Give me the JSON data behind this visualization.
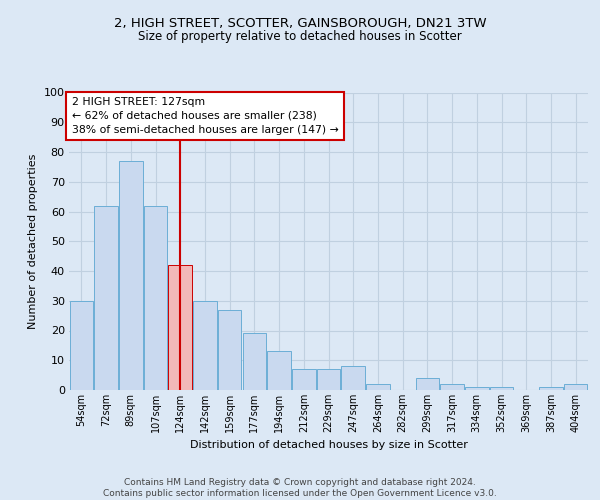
{
  "title1": "2, HIGH STREET, SCOTTER, GAINSBOROUGH, DN21 3TW",
  "title2": "Size of property relative to detached houses in Scotter",
  "xlabel": "Distribution of detached houses by size in Scotter",
  "ylabel": "Number of detached properties",
  "categories": [
    "54sqm",
    "72sqm",
    "89sqm",
    "107sqm",
    "124sqm",
    "142sqm",
    "159sqm",
    "177sqm",
    "194sqm",
    "212sqm",
    "229sqm",
    "247sqm",
    "264sqm",
    "282sqm",
    "299sqm",
    "317sqm",
    "334sqm",
    "352sqm",
    "369sqm",
    "387sqm",
    "404sqm"
  ],
  "values": [
    30,
    62,
    77,
    62,
    42,
    30,
    27,
    19,
    13,
    7,
    7,
    8,
    2,
    0,
    4,
    2,
    1,
    1,
    0,
    1,
    2
  ],
  "bar_color": "#c9d9ef",
  "bar_edge_color": "#6baed6",
  "highlight_bar_index": 4,
  "highlight_bar_color": "#f2b8b8",
  "highlight_bar_edge_color": "#cc0000",
  "vline_color": "#cc0000",
  "annotation_text": "2 HIGH STREET: 127sqm\n← 62% of detached houses are smaller (238)\n38% of semi-detached houses are larger (147) →",
  "annotation_box_color": "#ffffff",
  "annotation_box_edge_color": "#cc0000",
  "ylim": [
    0,
    100
  ],
  "yticks": [
    0,
    10,
    20,
    30,
    40,
    50,
    60,
    70,
    80,
    90,
    100
  ],
  "grid_color": "#c0d0e0",
  "footer_text": "Contains HM Land Registry data © Crown copyright and database right 2024.\nContains public sector information licensed under the Open Government Licence v3.0.",
  "bg_color": "#dce8f5",
  "plot_bg_color": "#dce8f5"
}
